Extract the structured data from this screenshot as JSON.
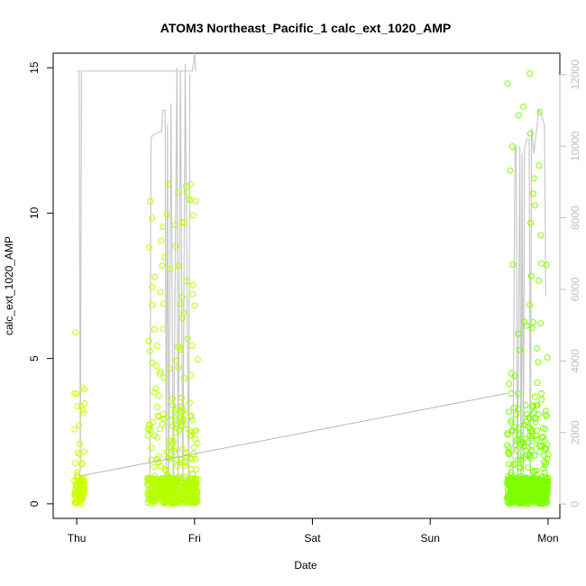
{
  "chart_data": {
    "type": "scatter",
    "title": "ATOM3 Northeast_Pacific_1 calc_ext_1020_AMP",
    "xlabel": "Date",
    "ylabel": "calc_ext_1020_AMP",
    "x_ticks": [
      "Thu",
      "Fri",
      "Sat",
      "Sun",
      "Mon"
    ],
    "xlim_days": [
      -0.2,
      4.1
    ],
    "y_ticks": [
      0,
      5,
      10,
      15
    ],
    "ylim": [
      -0.5,
      15.5
    ],
    "y2_ticks": [
      0,
      2000,
      4000,
      6000,
      8000,
      10000,
      12000
    ],
    "y2lim": [
      -400,
      12600
    ],
    "colors": {
      "points_early": "#ccff00",
      "points_late": "#7fff00",
      "depth_line": "#c8c8c8",
      "trend_line": "#b0b0b0"
    },
    "series": [
      {
        "marker": "open-circle",
        "axis": "left",
        "clusters": [
          {
            "start": -0.02,
            "end": 0.07,
            "count": 90,
            "max": 5.9,
            "color_t": 0.0
          },
          {
            "start": 0.6,
            "end": 1.03,
            "count": 520,
            "max": 11.0,
            "color_t": 0.3
          },
          {
            "start": 3.65,
            "end": 4.0,
            "count": 560,
            "max": 14.8,
            "color_t": 1.0
          }
        ]
      },
      {
        "marker": "line",
        "axis": "right",
        "segments": [
          {
            "x": [
              0.0,
              0.02,
              0.03,
              0.04,
              0.98,
              0.99,
              1.0,
              1.01
            ],
            "y": [
              12100,
              12100,
              900,
              12100,
              12100,
              12300,
              12600,
              12100
            ]
          },
          {
            "x": [
              0.62,
              0.63,
              0.64,
              0.7,
              0.72,
              0.73,
              0.75,
              0.76,
              0.77,
              0.78,
              0.8,
              0.82,
              0.85,
              0.86,
              0.88,
              0.9,
              0.92,
              0.95,
              0.96
            ],
            "y": [
              0,
              10200,
              10300,
              10400,
              10400,
              11000,
              11000,
              200,
              10600,
              300,
              11200,
              200,
              12200,
              300,
              12100,
              200,
              12300,
              300,
              12000
            ]
          },
          {
            "x": [
              3.7,
              3.72,
              3.73,
              3.74,
              3.76,
              3.77,
              3.78,
              3.79,
              3.8,
              3.82,
              3.84,
              3.85,
              3.86,
              3.88,
              3.9,
              3.92,
              3.93,
              3.94,
              3.96,
              3.97,
              3.98
            ],
            "y": [
              0,
              10000,
              10000,
              200,
              10000,
              300,
              9800,
              200,
              9900,
              10200,
              10200,
              300,
              10500,
              9800,
              10400,
              11000,
              11000,
              10900,
              10700,
              10600,
              5800
            ]
          }
        ]
      },
      {
        "marker": "trend",
        "axis": "left",
        "x": [
          0.02,
          3.65
        ],
        "y": [
          0.95,
          3.8
        ]
      }
    ]
  }
}
